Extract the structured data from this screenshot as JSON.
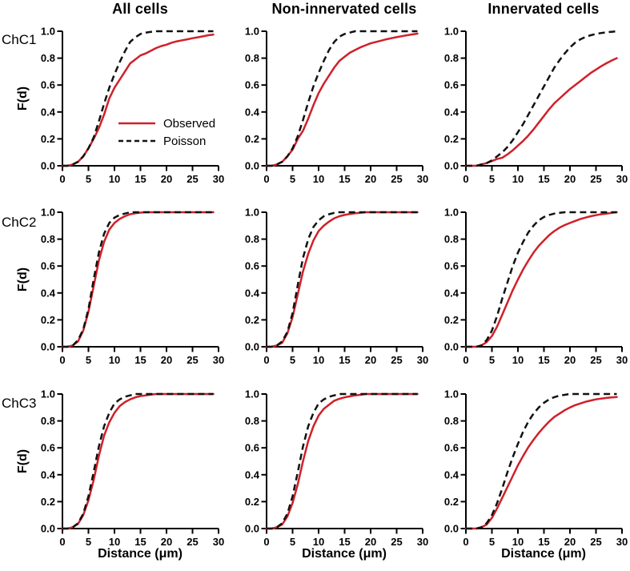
{
  "figure": {
    "column_titles": [
      "All cells",
      "Non-innervated cells",
      "Innervated cells"
    ],
    "row_labels": [
      "ChC1",
      "ChC2",
      "ChC3"
    ],
    "ylabel": "F(d)",
    "xlabel": "Distance (μm)",
    "legend": [
      {
        "label": "Observed",
        "series_key": "observed",
        "style": "solid"
      },
      {
        "label": "Poisson",
        "series_key": "poisson",
        "style": "dashed"
      }
    ]
  },
  "chart_data": {
    "type": "line",
    "title": "",
    "xlabel": "Distance (μm)",
    "ylabel": "F(d)",
    "xlim": [
      0,
      30
    ],
    "ylim": [
      0.0,
      1.0
    ],
    "grid": false,
    "legend_position": "inside panel row 1 col 1",
    "x_ticks": [
      0,
      5,
      10,
      15,
      20,
      25,
      30
    ],
    "x_tick_labels": [
      "0",
      "5",
      "10",
      "15",
      "20",
      "25",
      "30"
    ],
    "y_ticks": [
      0,
      0.2,
      0.4,
      0.6,
      0.8,
      1.0
    ],
    "y_tick_labels": [
      "0.0",
      "0.2",
      "0.4",
      "0.6",
      "0.8",
      "1.0"
    ],
    "colors": {
      "observed": "#d0202a",
      "poisson": "#121212",
      "axis": "#000000"
    },
    "x": [
      0,
      1,
      2,
      3,
      4,
      5,
      6,
      7,
      8,
      9,
      10,
      11,
      12,
      13,
      14,
      15,
      16,
      17,
      18,
      19,
      20,
      21,
      22,
      23,
      24,
      25,
      26,
      27,
      28,
      29
    ],
    "panels": [
      {
        "row": "ChC1",
        "col": "All cells",
        "series": [
          {
            "name": "Observed",
            "key": "observed",
            "y": [
              0,
              0,
              0.01,
              0.03,
              0.07,
              0.13,
              0.2,
              0.28,
              0.38,
              0.5,
              0.58,
              0.64,
              0.7,
              0.76,
              0.79,
              0.82,
              0.835,
              0.855,
              0.875,
              0.89,
              0.9,
              0.915,
              0.925,
              0.933,
              0.94,
              0.948,
              0.955,
              0.962,
              0.97,
              0.975
            ]
          },
          {
            "name": "Poisson",
            "key": "poisson",
            "y": [
              0,
              0,
              0.01,
              0.03,
              0.07,
              0.13,
              0.21,
              0.33,
              0.46,
              0.58,
              0.68,
              0.77,
              0.85,
              0.92,
              0.955,
              0.98,
              0.99,
              0.995,
              1,
              1,
              1,
              1,
              1,
              1,
              1,
              1,
              1,
              1,
              1,
              1
            ]
          }
        ]
      },
      {
        "row": "ChC1",
        "col": "Non-innervated cells",
        "series": [
          {
            "name": "Observed",
            "key": "observed",
            "y": [
              0,
              0,
              0.01,
              0.03,
              0.07,
              0.12,
              0.2,
              0.26,
              0.35,
              0.45,
              0.54,
              0.61,
              0.67,
              0.73,
              0.78,
              0.81,
              0.84,
              0.86,
              0.88,
              0.895,
              0.91,
              0.92,
              0.93,
              0.94,
              0.948,
              0.956,
              0.963,
              0.97,
              0.976,
              0.982
            ]
          },
          {
            "name": "Poisson",
            "key": "poisson",
            "y": [
              0,
              0,
              0.01,
              0.03,
              0.07,
              0.13,
              0.22,
              0.34,
              0.47,
              0.59,
              0.69,
              0.78,
              0.86,
              0.92,
              0.96,
              0.98,
              0.99,
              1,
              1,
              1,
              1,
              1,
              1,
              1,
              1,
              1,
              1,
              1,
              1,
              1
            ]
          }
        ]
      },
      {
        "row": "ChC1",
        "col": "Innervated cells",
        "series": [
          {
            "name": "Observed",
            "key": "observed",
            "y": [
              0,
              0,
              0,
              0.01,
              0.02,
              0.035,
              0.05,
              0.06,
              0.085,
              0.115,
              0.15,
              0.185,
              0.225,
              0.27,
              0.32,
              0.37,
              0.42,
              0.465,
              0.5,
              0.535,
              0.57,
              0.6,
              0.63,
              0.66,
              0.69,
              0.715,
              0.74,
              0.762,
              0.782,
              0.8
            ]
          },
          {
            "name": "Poisson",
            "key": "poisson",
            "y": [
              0,
              0,
              0,
              0.01,
              0.02,
              0.04,
              0.07,
              0.1,
              0.14,
              0.19,
              0.25,
              0.31,
              0.38,
              0.45,
              0.52,
              0.59,
              0.66,
              0.73,
              0.785,
              0.835,
              0.88,
              0.915,
              0.94,
              0.958,
              0.97,
              0.98,
              0.987,
              0.992,
              0.996,
              1
            ]
          }
        ]
      },
      {
        "row": "ChC2",
        "col": "All cells",
        "series": [
          {
            "name": "Observed",
            "key": "observed",
            "y": [
              0,
              0,
              0.01,
              0.04,
              0.12,
              0.26,
              0.45,
              0.64,
              0.78,
              0.87,
              0.92,
              0.95,
              0.97,
              0.985,
              0.992,
              0.997,
              1,
              1,
              1,
              1,
              1,
              1,
              1,
              1,
              1,
              1,
              1,
              1,
              1,
              1
            ]
          },
          {
            "name": "Poisson",
            "key": "poisson",
            "y": [
              0,
              0,
              0.01,
              0.05,
              0.13,
              0.28,
              0.5,
              0.7,
              0.84,
              0.92,
              0.96,
              0.98,
              0.99,
              1,
              1,
              1,
              1,
              1,
              1,
              1,
              1,
              1,
              1,
              1,
              1,
              1,
              1,
              1,
              1,
              1
            ]
          }
        ]
      },
      {
        "row": "ChC2",
        "col": "Non-innervated cells",
        "series": [
          {
            "name": "Observed",
            "key": "observed",
            "y": [
              0,
              0,
              0.01,
              0.03,
              0.1,
              0.22,
              0.39,
              0.56,
              0.69,
              0.79,
              0.86,
              0.9,
              0.93,
              0.955,
              0.97,
              0.98,
              0.987,
              0.992,
              0.996,
              1,
              1,
              1,
              1,
              1,
              1,
              1,
              1,
              1,
              1,
              1
            ]
          },
          {
            "name": "Poisson",
            "key": "poisson",
            "y": [
              0,
              0,
              0.01,
              0.04,
              0.11,
              0.25,
              0.46,
              0.66,
              0.8,
              0.89,
              0.94,
              0.97,
              0.985,
              0.995,
              1,
              1,
              1,
              1,
              1,
              1,
              1,
              1,
              1,
              1,
              1,
              1,
              1,
              1,
              1,
              1
            ]
          }
        ]
      },
      {
        "row": "ChC2",
        "col": "Innervated cells",
        "series": [
          {
            "name": "Observed",
            "key": "observed",
            "y": [
              0,
              0,
              0,
              0.01,
              0.035,
              0.08,
              0.15,
              0.24,
              0.33,
              0.42,
              0.5,
              0.575,
              0.64,
              0.7,
              0.75,
              0.79,
              0.83,
              0.86,
              0.885,
              0.905,
              0.92,
              0.935,
              0.95,
              0.96,
              0.97,
              0.978,
              0.985,
              0.99,
              0.995,
              1
            ]
          },
          {
            "name": "Poisson",
            "key": "poisson",
            "y": [
              0,
              0,
              0,
              0.01,
              0.05,
              0.12,
              0.23,
              0.36,
              0.48,
              0.6,
              0.7,
              0.78,
              0.85,
              0.9,
              0.94,
              0.965,
              0.98,
              0.99,
              0.995,
              1,
              1,
              1,
              1,
              1,
              1,
              1,
              1,
              1,
              1,
              1
            ]
          }
        ]
      },
      {
        "row": "ChC3",
        "col": "All cells",
        "series": [
          {
            "name": "Observed",
            "key": "observed",
            "y": [
              0,
              0,
              0.01,
              0.035,
              0.1,
              0.21,
              0.36,
              0.54,
              0.69,
              0.79,
              0.86,
              0.91,
              0.94,
              0.96,
              0.975,
              0.985,
              0.99,
              0.995,
              1,
              1,
              1,
              1,
              1,
              1,
              1,
              1,
              1,
              1,
              1,
              1
            ]
          },
          {
            "name": "Poisson",
            "key": "poisson",
            "y": [
              0,
              0,
              0.01,
              0.04,
              0.11,
              0.24,
              0.42,
              0.61,
              0.76,
              0.86,
              0.93,
              0.96,
              0.98,
              0.99,
              1,
              1,
              1,
              1,
              1,
              1,
              1,
              1,
              1,
              1,
              1,
              1,
              1,
              1,
              1,
              1
            ]
          }
        ]
      },
      {
        "row": "ChC3",
        "col": "Non-innervated cells",
        "series": [
          {
            "name": "Observed",
            "key": "observed",
            "y": [
              0,
              0,
              0.01,
              0.03,
              0.09,
              0.19,
              0.33,
              0.5,
              0.65,
              0.76,
              0.84,
              0.89,
              0.92,
              0.95,
              0.965,
              0.975,
              0.983,
              0.99,
              0.994,
              1,
              1,
              1,
              1,
              1,
              1,
              1,
              1,
              1,
              1,
              1
            ]
          },
          {
            "name": "Poisson",
            "key": "poisson",
            "y": [
              0,
              0,
              0.01,
              0.04,
              0.11,
              0.24,
              0.42,
              0.61,
              0.76,
              0.86,
              0.93,
              0.96,
              0.98,
              0.99,
              1,
              1,
              1,
              1,
              1,
              1,
              1,
              1,
              1,
              1,
              1,
              1,
              1,
              1,
              1,
              1
            ]
          }
        ]
      },
      {
        "row": "ChC3",
        "col": "Innervated cells",
        "series": [
          {
            "name": "Observed",
            "key": "observed",
            "y": [
              0,
              0,
              0,
              0.01,
              0.03,
              0.08,
              0.15,
              0.23,
              0.31,
              0.39,
              0.47,
              0.54,
              0.605,
              0.66,
              0.71,
              0.755,
              0.795,
              0.83,
              0.855,
              0.88,
              0.9,
              0.917,
              0.93,
              0.942,
              0.952,
              0.96,
              0.966,
              0.971,
              0.975,
              0.978
            ]
          },
          {
            "name": "Poisson",
            "key": "poisson",
            "y": [
              0,
              0,
              0,
              0.01,
              0.04,
              0.1,
              0.19,
              0.3,
              0.42,
              0.53,
              0.63,
              0.72,
              0.795,
              0.855,
              0.9,
              0.935,
              0.96,
              0.977,
              0.988,
              0.994,
              1,
              1,
              1,
              1,
              1,
              1,
              1,
              1,
              1,
              1
            ]
          }
        ]
      }
    ]
  }
}
